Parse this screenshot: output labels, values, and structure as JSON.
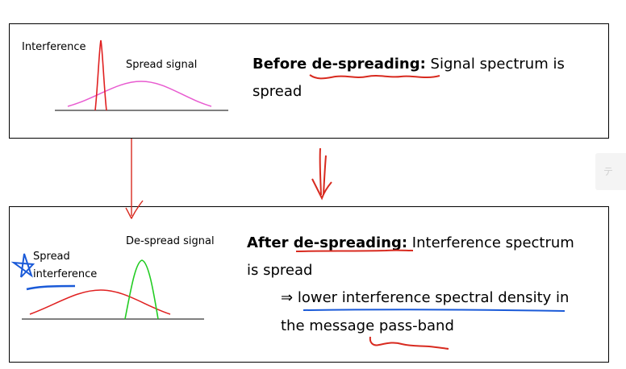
{
  "top_panel": {
    "interference_label": "Interference",
    "spread_label": "Spread signal",
    "heading_bold": "Before de-spreading:",
    "heading_rest": " Signal spectrum is",
    "heading_line2": "spread"
  },
  "bottom_panel": {
    "despread_label": "De-spread signal",
    "spread_interference_line1": "Spread",
    "spread_interference_line2": "interference",
    "heading_bold": "After de-spreading:",
    "heading_rest": " Interference spectrum",
    "heading_line2": "is spread",
    "arrow_symbol": "⇒",
    "bullet_line1": "lower interference spectral density",
    "bullet_line1_end": " in",
    "bullet_line2": "the message pass-band"
  },
  "side_tab": {
    "glyph": "テ"
  },
  "colors": {
    "interference": "#e02020",
    "spread_signal": "#e85bd0",
    "despread_signal": "#22cc22",
    "annotation_red": "#d82a1f",
    "annotation_blue": "#1a5ad8"
  }
}
